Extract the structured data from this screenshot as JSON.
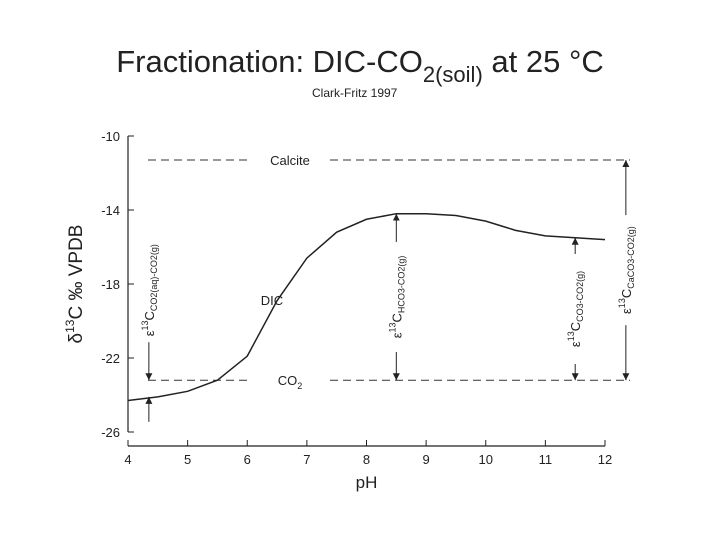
{
  "title": {
    "main": "Fractionation: DIC-CO",
    "sub": "2(soil)",
    "rest": " at 25 °C"
  },
  "subtitle": "Clark-Fritz 1997",
  "chart_data": {
    "type": "line",
    "x_label": "pH",
    "y_label": {
      "pre": "δ",
      "sup": "13",
      "post": "C ‰ VPDB"
    },
    "x": [
      4,
      4.5,
      5,
      5.5,
      6,
      6.5,
      7,
      7.5,
      8,
      8.5,
      9,
      9.5,
      10,
      10.5,
      11,
      11.5,
      12
    ],
    "series": [
      {
        "name": "DIC",
        "color": "#222222",
        "values": [
          -24.3,
          -24.1,
          -23.8,
          -23.2,
          -21.9,
          -18.9,
          -16.6,
          -15.2,
          -14.5,
          -14.2,
          -14.2,
          -14.3,
          -14.6,
          -15.1,
          -15.4,
          -15.5,
          -15.6
        ]
      }
    ],
    "xlim": [
      4,
      12
    ],
    "ylim": [
      -26,
      -10
    ],
    "xticks": [
      4,
      5,
      6,
      7,
      8,
      9,
      10,
      11,
      12
    ],
    "yticks": [
      -26,
      -22,
      -18,
      -14,
      -10
    ],
    "reference_lines": [
      {
        "label": "Calcite",
        "y": -11.3
      },
      {
        "label": "CO",
        "label_sub": "2",
        "y": -23.2
      }
    ],
    "arrows": [
      {
        "x": 4.35,
        "y": [
          -23.2,
          -24.1
        ],
        "style": "outside",
        "label": {
          "pre": "ε",
          "sup": "13",
          "post": "C",
          "sub": "CO2(aq)-CO2(g)"
        }
      },
      {
        "x": 8.5,
        "y": [
          -14.2,
          -23.2
        ],
        "style": "inside",
        "label": {
          "pre": "ε",
          "sup": "13",
          "post": "C",
          "sub": "HCO3-CO2(g)"
        }
      },
      {
        "x": 11.5,
        "y": [
          -15.5,
          -23.2
        ],
        "style": "inside",
        "label": {
          "pre": "ε",
          "sup": "13",
          "post": "C",
          "sub": "CO3-CO2(g)"
        }
      },
      {
        "x": 12.35,
        "y": [
          -11.3,
          -23.2
        ],
        "style": "inside",
        "label": {
          "pre": "ε",
          "sup": "13",
          "post": "C",
          "sub": "CaCO3-CO2(g)"
        }
      }
    ]
  }
}
